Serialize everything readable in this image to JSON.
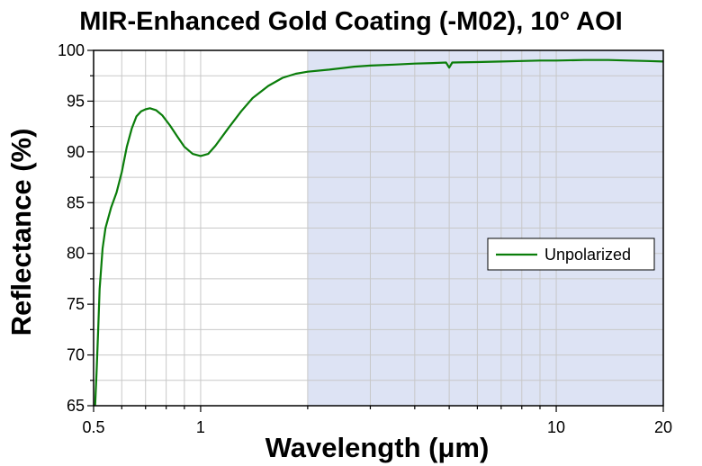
{
  "chart_data": {
    "type": "line",
    "title": "MIR-Enhanced Gold Coating (-M02), 10° AOI",
    "xlabel": "Wavelength (μm)",
    "ylabel": "Reflectance (%)",
    "x_scale": "log",
    "xlim": [
      0.5,
      20
    ],
    "ylim": [
      65,
      100
    ],
    "x_ticks": [
      {
        "value": 0.5,
        "label": "0.5"
      },
      {
        "value": 1,
        "label": "1"
      },
      {
        "value": 10,
        "label": "10"
      },
      {
        "value": 20,
        "label": "20"
      }
    ],
    "y_ticks": [
      {
        "value": 65,
        "label": "65"
      },
      {
        "value": 70,
        "label": "70"
      },
      {
        "value": 75,
        "label": "75"
      },
      {
        "value": 80,
        "label": "80"
      },
      {
        "value": 85,
        "label": "85"
      },
      {
        "value": 90,
        "label": "90"
      },
      {
        "value": 95,
        "label": "95"
      },
      {
        "value": 100,
        "label": "100"
      }
    ],
    "grid": true,
    "shaded_region": {
      "x_from": 2,
      "x_to": 20,
      "color": "#dde3f4"
    },
    "legend": {
      "position": "right"
    },
    "series": [
      {
        "name": "Unpolarized",
        "color": "#0a7d0a",
        "points": [
          [
            0.505,
            65.0
          ],
          [
            0.51,
            68.5
          ],
          [
            0.515,
            72.5
          ],
          [
            0.52,
            76.5
          ],
          [
            0.53,
            80.5
          ],
          [
            0.54,
            82.5
          ],
          [
            0.56,
            84.5
          ],
          [
            0.58,
            86.0
          ],
          [
            0.6,
            88.0
          ],
          [
            0.62,
            90.5
          ],
          [
            0.64,
            92.3
          ],
          [
            0.66,
            93.5
          ],
          [
            0.68,
            94.0
          ],
          [
            0.7,
            94.2
          ],
          [
            0.72,
            94.3
          ],
          [
            0.75,
            94.1
          ],
          [
            0.78,
            93.6
          ],
          [
            0.82,
            92.6
          ],
          [
            0.86,
            91.5
          ],
          [
            0.9,
            90.5
          ],
          [
            0.95,
            89.8
          ],
          [
            1.0,
            89.6
          ],
          [
            1.05,
            89.8
          ],
          [
            1.1,
            90.6
          ],
          [
            1.2,
            92.4
          ],
          [
            1.3,
            94.0
          ],
          [
            1.4,
            95.3
          ],
          [
            1.55,
            96.5
          ],
          [
            1.7,
            97.3
          ],
          [
            1.85,
            97.7
          ],
          [
            2.0,
            97.9
          ],
          [
            2.3,
            98.1
          ],
          [
            2.7,
            98.4
          ],
          [
            3.0,
            98.5
          ],
          [
            3.5,
            98.6
          ],
          [
            4.0,
            98.7
          ],
          [
            4.5,
            98.75
          ],
          [
            4.9,
            98.8
          ],
          [
            5.0,
            98.3
          ],
          [
            5.1,
            98.8
          ],
          [
            6.0,
            98.85
          ],
          [
            7.0,
            98.9
          ],
          [
            8.0,
            98.95
          ],
          [
            9.0,
            99.0
          ],
          [
            10.0,
            99.0
          ],
          [
            12.0,
            99.05
          ],
          [
            14.0,
            99.05
          ],
          [
            16.0,
            99.0
          ],
          [
            18.0,
            98.95
          ],
          [
            20.0,
            98.9
          ]
        ]
      }
    ]
  }
}
